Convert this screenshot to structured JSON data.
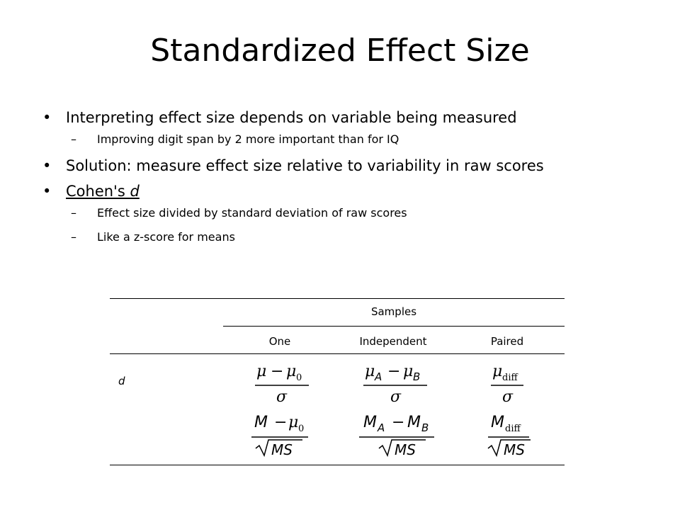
{
  "title": "Standardized Effect Size",
  "bullets": {
    "b1": "Interpreting effect size depends on variable being measured",
    "b1_sub": "Improving digit span by 2 more important than for IQ",
    "b2": "Solution: measure effect size relative to variability in raw scores",
    "b3_prefix": "Cohen's ",
    "b3_var": "d",
    "b3_sub1": "Effect size divided by standard deviation of raw scores",
    "b3_sub2": "Like a z-score for means"
  },
  "table": {
    "group_header": "Samples",
    "columns": [
      "One",
      "Independent",
      "Paired"
    ],
    "row_label": "d",
    "formulas": {
      "pop_one": "(μ − μ0) / σ",
      "pop_independent": "(μA − μB) / σ",
      "pop_paired": "μdiff / σ",
      "sample_one": "(M − μ0) / √MS",
      "sample_independent": "(MA − MB) / √MS",
      "sample_paired": "Mdiff / √MS"
    }
  }
}
